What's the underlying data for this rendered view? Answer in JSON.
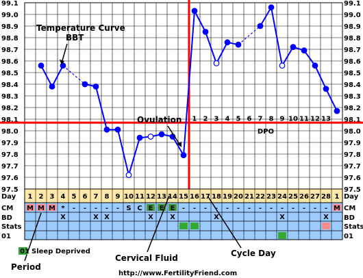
{
  "chart_data": {
    "type": "line",
    "ylim": [
      97.5,
      99.1
    ],
    "y_ticks": [
      "99.1",
      "99.0",
      "98.9",
      "98.8",
      "98.7",
      "98.6",
      "98.5",
      "98.4",
      "98.3",
      "98.2",
      "98.1",
      "98.0",
      "97.9",
      "97.8",
      "97.7",
      "97.6",
      "97.5"
    ],
    "coverline": 98.07,
    "ovulation_day": 15,
    "x_row_label": "Day",
    "day_labels": [
      "1",
      "2",
      "3",
      "4",
      "5",
      "6",
      "7",
      "8",
      "9",
      "10",
      "11",
      "12",
      "13",
      "14",
      "15",
      "16",
      "17",
      "18",
      "19",
      "20",
      "21",
      "22",
      "23",
      "24",
      "25",
      "26",
      "27",
      "28",
      "1"
    ],
    "dpo_labels": [
      "1",
      "2",
      "3",
      "4",
      "5",
      "6",
      "7",
      "8",
      "9",
      "10",
      "11",
      "12",
      "13"
    ],
    "dpo_title": "DPO",
    "temperatures": [
      null,
      98.56,
      98.38,
      98.56,
      null,
      98.4,
      98.38,
      98.01,
      98.01,
      97.62,
      97.94,
      97.95,
      97.97,
      97.95,
      97.79,
      99.03,
      98.85,
      98.58,
      98.76,
      98.74,
      null,
      98.9,
      99.06,
      98.56,
      98.72,
      98.69,
      98.56,
      98.36,
      98.17
    ],
    "open_point_days": [
      10,
      12,
      18,
      24
    ],
    "dashed_segments": [
      [
        2,
        4
      ],
      [
        4,
        6
      ],
      [
        11,
        13
      ],
      [
        20,
        22
      ]
    ],
    "rows": {
      "cm": {
        "label": "CM",
        "values": [
          "M",
          "M",
          "M",
          "*",
          "-",
          "-",
          "-",
          "-",
          "-",
          "S",
          "C",
          "E",
          "E",
          "E",
          "-",
          "-",
          "-",
          "-",
          "-",
          "-",
          "-",
          "-",
          "-",
          "-",
          "-",
          "-",
          "-",
          "-",
          "M"
        ]
      },
      "bd": {
        "label": "BD",
        "values": [
          "",
          "",
          "",
          "X",
          "",
          "",
          "X",
          "X",
          "",
          "",
          "",
          "X",
          "",
          "X",
          "",
          "",
          "",
          "X",
          "",
          "",
          "",
          "",
          "",
          "X",
          "",
          "",
          "",
          "X",
          ""
        ]
      },
      "stats": {
        "label": "Stats",
        "fill_days": [
          15,
          16
        ],
        "pink_days": [
          28
        ]
      },
      "r01": {
        "label": "01",
        "fill_days": [
          24
        ]
      }
    },
    "colors": {
      "line": "#0000ff",
      "coverline": "#ff0000",
      "grid": "#000000",
      "plot_bg": "#ffffff",
      "day_row_bg": "#ffe8a8",
      "cm_bg": "#9ccbff",
      "menses": "#ff8c8c",
      "fertile_cm": "#3a9a3a",
      "stats_green": "#33aa33"
    }
  },
  "annotations": {
    "temperature_curve": "Temperature Curve",
    "bbt": "BBT",
    "ovulation": "Ovulation",
    "period": "Period",
    "cervical_fluid": "Cervical Fluid",
    "cycle_day": "Cycle Day"
  },
  "legend": {
    "badge": "01",
    "text": "Sleep Deprived"
  },
  "footer": {
    "url": "http://www.FertilityFriend.com"
  }
}
